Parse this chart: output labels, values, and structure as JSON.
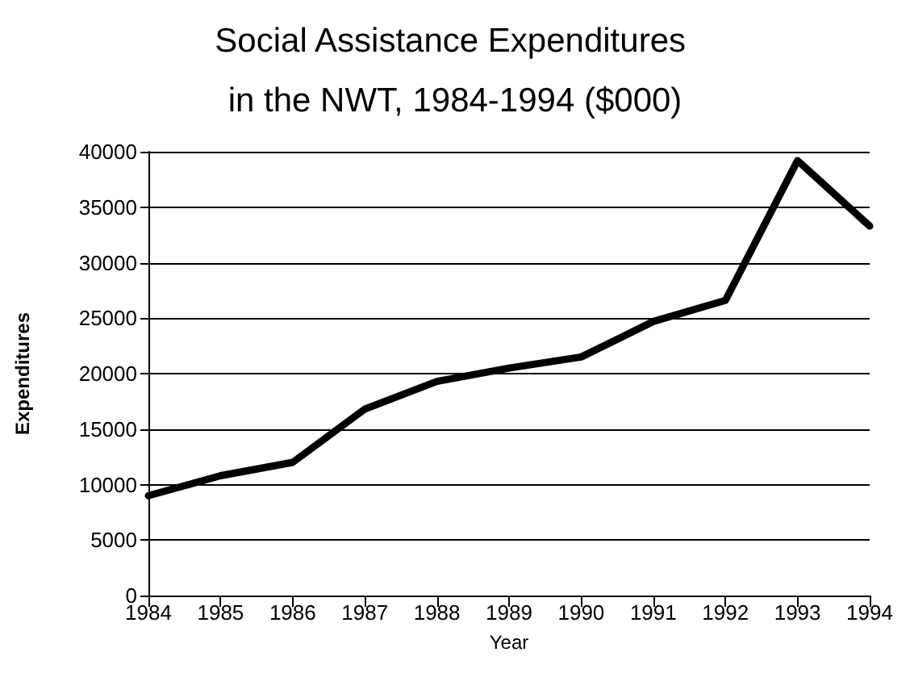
{
  "chart_data": {
    "type": "line",
    "title": "Social Assistance Expenditures in the NWT, 1984-1994 ($000)",
    "xlabel": "Year",
    "ylabel": "Expenditures",
    "categories": [
      "1984",
      "1985",
      "1986",
      "1987",
      "1988",
      "1989",
      "1990",
      "1991",
      "1992",
      "1993",
      "1994"
    ],
    "series": [
      {
        "color": "#000000",
        "values": [
          9000,
          10800,
          12000,
          16800,
          19300,
          20500,
          21500,
          24700,
          26600,
          39200,
          33300
        ]
      }
    ],
    "ylim": [
      0,
      40000
    ],
    "yticks": [
      0,
      5000,
      10000,
      15000,
      20000,
      25000,
      30000,
      35000,
      40000
    ],
    "grid": "y",
    "marker": "none",
    "line_style": "solid"
  }
}
